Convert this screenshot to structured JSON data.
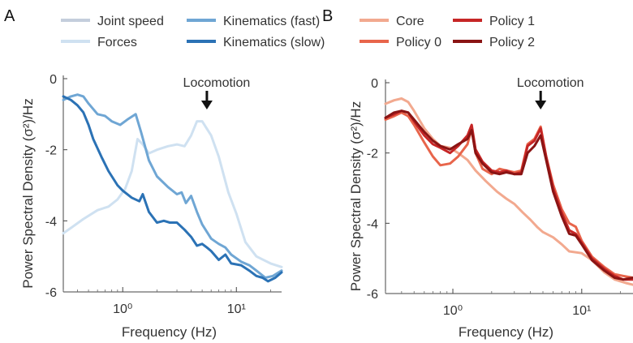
{
  "chart_data": [
    {
      "panel_label": "A",
      "type": "line",
      "xscale": "log",
      "xlabel": "Frequency (Hz)",
      "ylabel": "Power Spectral Density (σ²)/Hz",
      "xlim": [
        0.3,
        25
      ],
      "ylim": [
        -6,
        0
      ],
      "xticks": [
        {
          "value": 1,
          "label": "10⁰"
        },
        {
          "value": 10,
          "label": "10¹"
        }
      ],
      "yticks": [
        0,
        -2,
        -4,
        -6
      ],
      "annotation": {
        "text": "Locomotion",
        "x": 5.5
      },
      "legend_position": "top",
      "series": [
        {
          "name": "Joint speed",
          "color": "#c4cedc",
          "points": []
        },
        {
          "name": "Forces",
          "color": "#cfe1f1",
          "points": [
            [
              0.3,
              -4.35
            ],
            [
              0.35,
              -4.2
            ],
            [
              0.45,
              -3.95
            ],
            [
              0.6,
              -3.7
            ],
            [
              0.75,
              -3.6
            ],
            [
              0.9,
              -3.4
            ],
            [
              1.05,
              -3.1
            ],
            [
              1.2,
              -2.6
            ],
            [
              1.35,
              -1.7
            ],
            [
              1.5,
              -1.85
            ],
            [
              1.7,
              -2.1
            ],
            [
              2.0,
              -2.0
            ],
            [
              2.5,
              -1.9
            ],
            [
              3.0,
              -1.85
            ],
            [
              3.5,
              -1.9
            ],
            [
              4.0,
              -1.6
            ],
            [
              4.5,
              -1.2
            ],
            [
              5.0,
              -1.2
            ],
            [
              6.0,
              -1.6
            ],
            [
              7.0,
              -2.2
            ],
            [
              8.5,
              -3.2
            ],
            [
              10.0,
              -3.8
            ],
            [
              12.0,
              -4.6
            ],
            [
              15.0,
              -5.0
            ],
            [
              20.0,
              -5.2
            ],
            [
              25.0,
              -5.3
            ]
          ]
        },
        {
          "name": "Kinematics (fast)",
          "color": "#6fa6d4",
          "points": [
            [
              0.3,
              -0.6
            ],
            [
              0.35,
              -0.5
            ],
            [
              0.4,
              -0.45
            ],
            [
              0.45,
              -0.5
            ],
            [
              0.5,
              -0.7
            ],
            [
              0.6,
              -1.0
            ],
            [
              0.7,
              -1.05
            ],
            [
              0.8,
              -1.2
            ],
            [
              0.95,
              -1.3
            ],
            [
              1.1,
              -1.15
            ],
            [
              1.3,
              -1.0
            ],
            [
              1.45,
              -1.5
            ],
            [
              1.7,
              -2.3
            ],
            [
              2.0,
              -2.75
            ],
            [
              2.5,
              -3.05
            ],
            [
              3.0,
              -3.25
            ],
            [
              3.3,
              -3.2
            ],
            [
              3.6,
              -3.5
            ],
            [
              4.0,
              -3.3
            ],
            [
              4.5,
              -3.75
            ],
            [
              5.0,
              -4.1
            ],
            [
              6.0,
              -4.5
            ],
            [
              7.0,
              -4.65
            ],
            [
              8.0,
              -4.75
            ],
            [
              9.0,
              -4.95
            ],
            [
              11.0,
              -5.15
            ],
            [
              13.0,
              -5.25
            ],
            [
              15.0,
              -5.4
            ],
            [
              18.0,
              -5.6
            ],
            [
              21.0,
              -5.55
            ],
            [
              25.0,
              -5.4
            ]
          ]
        },
        {
          "name": "Kinematics (slow)",
          "color": "#2b72b5",
          "points": [
            [
              0.3,
              -0.5
            ],
            [
              0.35,
              -0.6
            ],
            [
              0.4,
              -0.75
            ],
            [
              0.45,
              -0.95
            ],
            [
              0.5,
              -1.3
            ],
            [
              0.55,
              -1.7
            ],
            [
              0.65,
              -2.2
            ],
            [
              0.75,
              -2.6
            ],
            [
              0.9,
              -3.0
            ],
            [
              1.0,
              -3.15
            ],
            [
              1.2,
              -3.35
            ],
            [
              1.4,
              -3.45
            ],
            [
              1.5,
              -3.25
            ],
            [
              1.7,
              -3.75
            ],
            [
              2.0,
              -4.05
            ],
            [
              2.3,
              -4.0
            ],
            [
              2.6,
              -4.05
            ],
            [
              3.0,
              -4.05
            ],
            [
              3.5,
              -4.25
            ],
            [
              4.0,
              -4.45
            ],
            [
              4.5,
              -4.7
            ],
            [
              5.0,
              -4.65
            ],
            [
              5.5,
              -4.75
            ],
            [
              6.0,
              -4.85
            ],
            [
              7.0,
              -5.1
            ],
            [
              8.0,
              -4.95
            ],
            [
              9.0,
              -5.2
            ],
            [
              11.0,
              -5.25
            ],
            [
              13.0,
              -5.4
            ],
            [
              15.0,
              -5.55
            ],
            [
              17.0,
              -5.6
            ],
            [
              19.0,
              -5.7
            ],
            [
              22.0,
              -5.6
            ],
            [
              25.0,
              -5.45
            ]
          ]
        }
      ]
    },
    {
      "panel_label": "B",
      "type": "line",
      "xscale": "log",
      "xlabel": "Frequency (Hz)",
      "ylabel": "Power Spectral Density (σ²)/Hz",
      "xlim": [
        0.3,
        25
      ],
      "ylim": [
        -6,
        0
      ],
      "xticks": [
        {
          "value": 1,
          "label": "10⁰"
        },
        {
          "value": 10,
          "label": "10¹"
        }
      ],
      "yticks": [
        0,
        -2,
        -4,
        -6
      ],
      "annotation": {
        "text": "Locomotion",
        "x": 4.8
      },
      "legend_position": "top",
      "series": [
        {
          "name": "Core",
          "color": "#f2a98f",
          "points": [
            [
              0.3,
              -0.6
            ],
            [
              0.35,
              -0.5
            ],
            [
              0.4,
              -0.45
            ],
            [
              0.45,
              -0.55
            ],
            [
              0.5,
              -0.8
            ],
            [
              0.6,
              -1.3
            ],
            [
              0.7,
              -1.6
            ],
            [
              0.8,
              -1.8
            ],
            [
              0.95,
              -1.85
            ],
            [
              1.1,
              -2.0
            ],
            [
              1.3,
              -2.2
            ],
            [
              1.5,
              -2.5
            ],
            [
              1.8,
              -2.8
            ],
            [
              2.2,
              -3.1
            ],
            [
              2.6,
              -3.3
            ],
            [
              3.0,
              -3.45
            ],
            [
              3.5,
              -3.7
            ],
            [
              4.0,
              -3.9
            ],
            [
              4.5,
              -4.1
            ],
            [
              5.0,
              -4.25
            ],
            [
              6.0,
              -4.4
            ],
            [
              7.0,
              -4.6
            ],
            [
              8.0,
              -4.8
            ],
            [
              10.0,
              -4.85
            ],
            [
              12.0,
              -5.05
            ],
            [
              15.0,
              -5.4
            ],
            [
              18.0,
              -5.6
            ],
            [
              22.0,
              -5.7
            ],
            [
              25.0,
              -5.75
            ]
          ]
        },
        {
          "name": "Policy 0",
          "color": "#e8654b",
          "points": [
            [
              0.3,
              -1.05
            ],
            [
              0.35,
              -0.95
            ],
            [
              0.4,
              -0.85
            ],
            [
              0.45,
              -0.95
            ],
            [
              0.5,
              -1.2
            ],
            [
              0.6,
              -1.7
            ],
            [
              0.7,
              -2.1
            ],
            [
              0.8,
              -2.35
            ],
            [
              0.95,
              -2.3
            ],
            [
              1.1,
              -2.1
            ],
            [
              1.3,
              -1.75
            ],
            [
              1.4,
              -1.3
            ],
            [
              1.5,
              -2.0
            ],
            [
              1.7,
              -2.45
            ],
            [
              2.0,
              -2.6
            ],
            [
              2.3,
              -2.45
            ],
            [
              2.6,
              -2.5
            ],
            [
              3.0,
              -2.55
            ],
            [
              3.4,
              -2.5
            ],
            [
              3.8,
              -1.75
            ],
            [
              4.3,
              -1.6
            ],
            [
              4.8,
              -1.25
            ],
            [
              5.3,
              -2.1
            ],
            [
              6.0,
              -2.9
            ],
            [
              7.0,
              -3.6
            ],
            [
              8.0,
              -4.0
            ],
            [
              9.0,
              -4.1
            ],
            [
              10.0,
              -4.5
            ],
            [
              12.0,
              -4.95
            ],
            [
              15.0,
              -5.25
            ],
            [
              18.0,
              -5.45
            ],
            [
              21.0,
              -5.5
            ],
            [
              25.0,
              -5.55
            ]
          ]
        },
        {
          "name": "Policy 1",
          "color": "#c62626",
          "points": [
            [
              0.3,
              -1.0
            ],
            [
              0.35,
              -0.9
            ],
            [
              0.4,
              -0.8
            ],
            [
              0.45,
              -0.85
            ],
            [
              0.5,
              -1.1
            ],
            [
              0.6,
              -1.5
            ],
            [
              0.7,
              -1.75
            ],
            [
              0.8,
              -1.85
            ],
            [
              0.95,
              -2.0
            ],
            [
              1.1,
              -1.8
            ],
            [
              1.3,
              -1.5
            ],
            [
              1.4,
              -1.2
            ],
            [
              1.5,
              -1.9
            ],
            [
              1.7,
              -2.25
            ],
            [
              2.0,
              -2.5
            ],
            [
              2.3,
              -2.55
            ],
            [
              2.6,
              -2.5
            ],
            [
              3.0,
              -2.6
            ],
            [
              3.4,
              -2.55
            ],
            [
              3.8,
              -1.8
            ],
            [
              4.3,
              -1.65
            ],
            [
              4.8,
              -1.3
            ],
            [
              5.3,
              -2.1
            ],
            [
              6.0,
              -3.0
            ],
            [
              7.0,
              -3.7
            ],
            [
              8.0,
              -4.2
            ],
            [
              9.0,
              -4.3
            ],
            [
              10.0,
              -4.55
            ],
            [
              12.0,
              -5.0
            ],
            [
              15.0,
              -5.3
            ],
            [
              18.0,
              -5.5
            ],
            [
              21.0,
              -5.6
            ],
            [
              25.0,
              -5.6
            ]
          ]
        },
        {
          "name": "Policy 2",
          "color": "#8a1414",
          "points": [
            [
              0.3,
              -1.0
            ],
            [
              0.35,
              -0.85
            ],
            [
              0.4,
              -0.8
            ],
            [
              0.45,
              -0.85
            ],
            [
              0.5,
              -1.05
            ],
            [
              0.6,
              -1.4
            ],
            [
              0.7,
              -1.65
            ],
            [
              0.8,
              -1.8
            ],
            [
              0.95,
              -1.9
            ],
            [
              1.1,
              -1.75
            ],
            [
              1.3,
              -1.6
            ],
            [
              1.4,
              -1.35
            ],
            [
              1.5,
              -2.0
            ],
            [
              1.7,
              -2.3
            ],
            [
              2.0,
              -2.55
            ],
            [
              2.3,
              -2.6
            ],
            [
              2.6,
              -2.55
            ],
            [
              3.0,
              -2.6
            ],
            [
              3.4,
              -2.6
            ],
            [
              3.8,
              -2.0
            ],
            [
              4.3,
              -1.8
            ],
            [
              4.8,
              -1.5
            ],
            [
              5.3,
              -2.2
            ],
            [
              6.0,
              -3.1
            ],
            [
              7.0,
              -3.8
            ],
            [
              8.0,
              -4.3
            ],
            [
              9.0,
              -4.35
            ],
            [
              10.0,
              -4.6
            ],
            [
              12.0,
              -5.05
            ],
            [
              15.0,
              -5.35
            ],
            [
              18.0,
              -5.55
            ],
            [
              21.0,
              -5.6
            ],
            [
              25.0,
              -5.55
            ]
          ]
        }
      ]
    }
  ]
}
